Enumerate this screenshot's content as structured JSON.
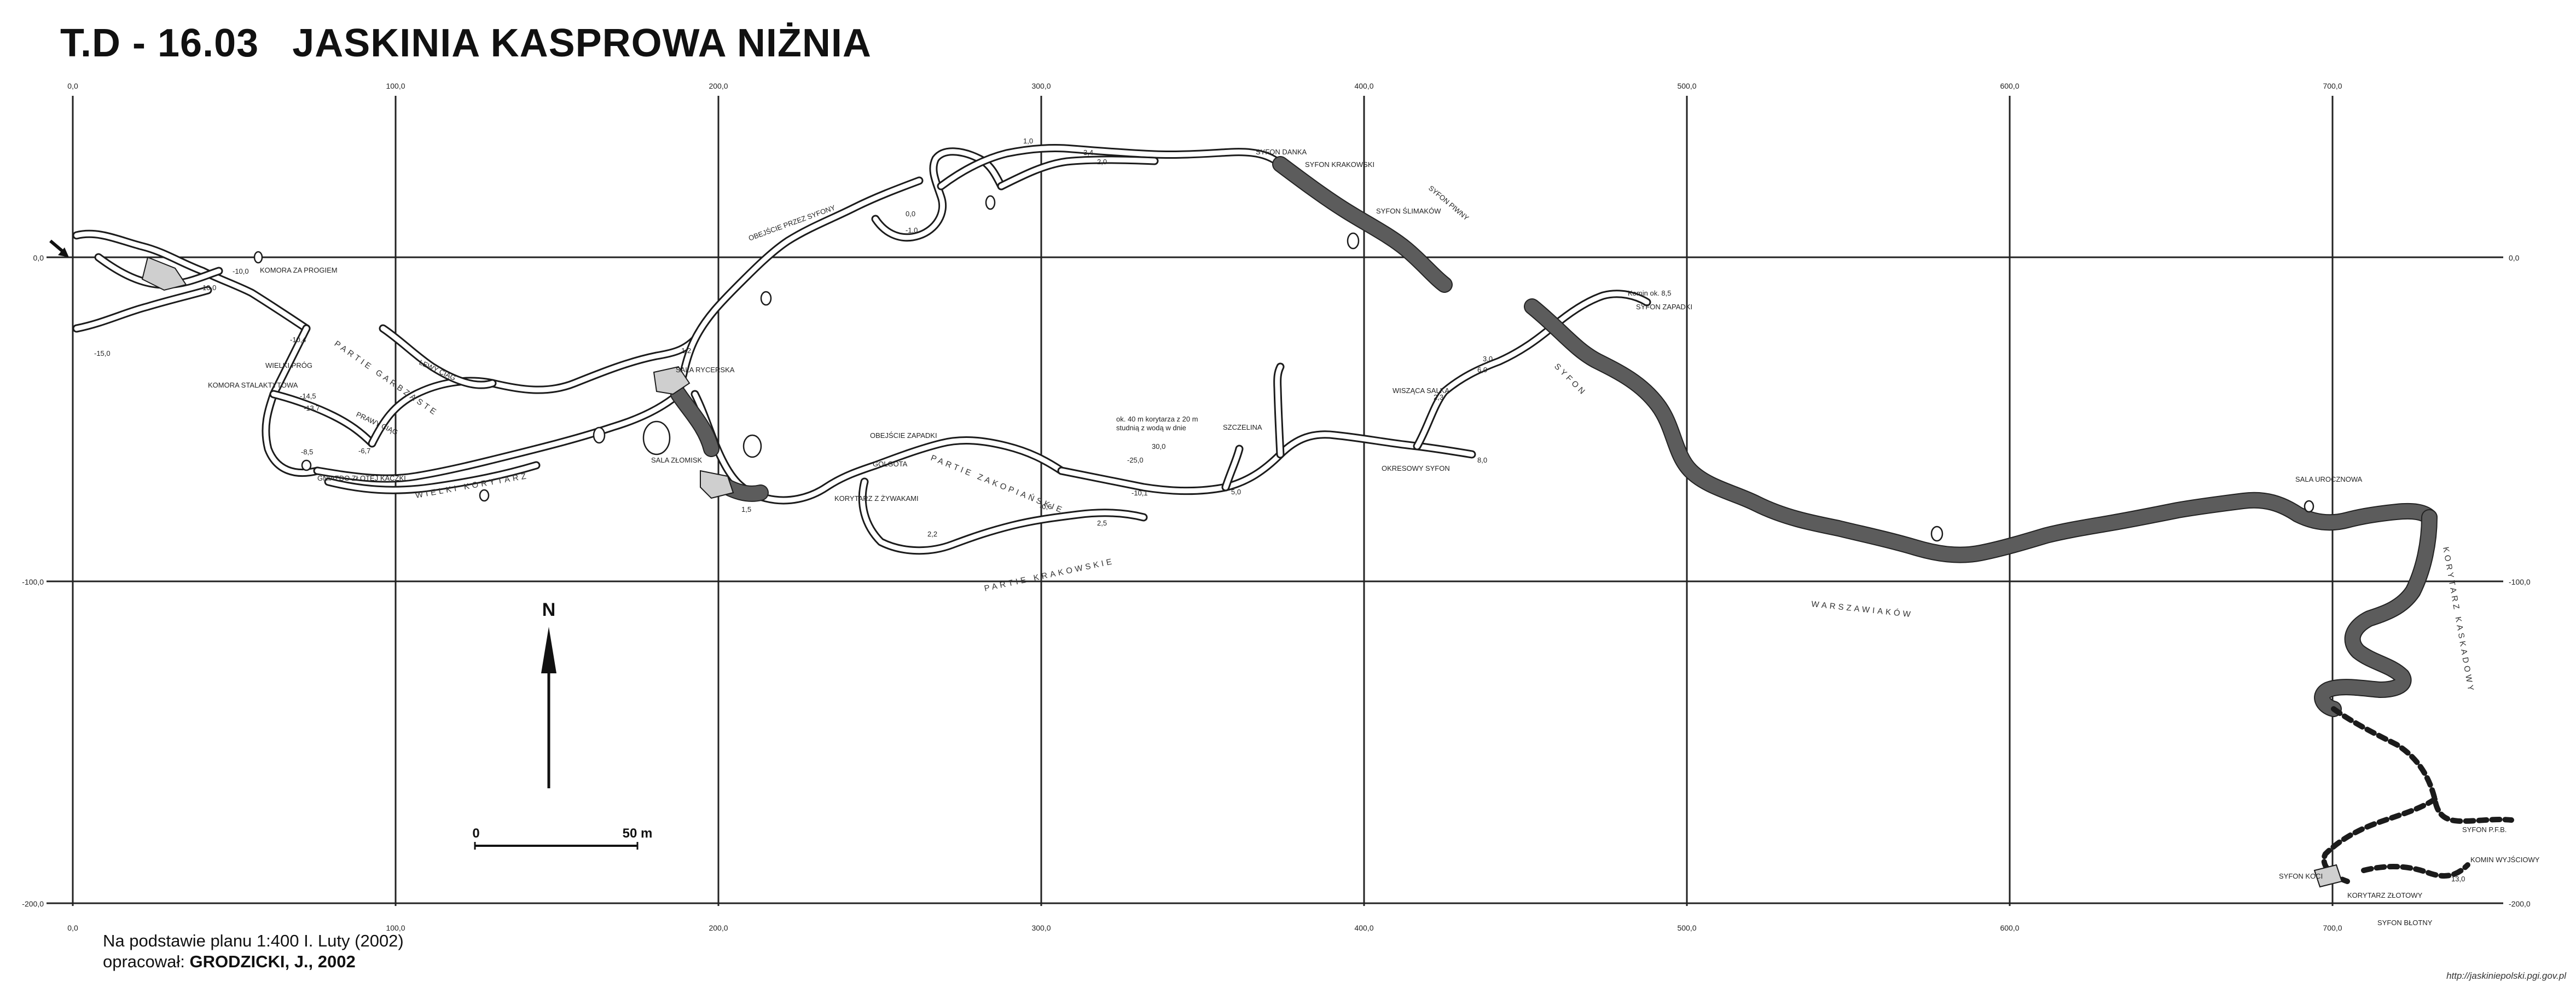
{
  "title": {
    "code": "T.D - 16.03",
    "name": "JASKINIA KASPROWA NIŻNIA"
  },
  "axes": {
    "x_ticks": [
      "0,0",
      "100,0",
      "200,0",
      "300,0",
      "400,0",
      "500,0",
      "600,0",
      "700,0"
    ],
    "y_ticks": [
      "0,0",
      "-100,0",
      "-200,0"
    ]
  },
  "north_arrow": {
    "label": "N"
  },
  "scale_bar": {
    "start": "0",
    "end": "50 m"
  },
  "labels": {
    "komora_za_progiem": "KOMORA ZA PROGIEM",
    "komora_stalaktytowa": "KOMORA STALAKTYTOWA",
    "wielki_prog": "WIELKI PRÓG",
    "gniazdo": "GNIAZDO ZŁOTEJ KACZKI",
    "lewy_ciag": "LEWY CIĄG",
    "prawy_ciag": "PRAWY CIĄG",
    "sala_rycerska": "SALA RYCERSKA",
    "sala_zlomisk": "SALA ZŁOMISK",
    "obejscie_syfony": "OBEJŚCIE PRZEZ SYFONY",
    "obejscie_zapadki": "OBEJŚCIE ZAPADKI",
    "golgota": "GOLGOTA",
    "korytarz_zywaczy": "KORYTARZ Z ŻYWAKAMI",
    "szczelina": "SZCZELINA",
    "wiszaca_salka": "WISZĄCA SALKA",
    "okresowy_syfon": "OKRESOWY SYFON",
    "syfon_danka": "SYFON DANKA",
    "syfon_krakowski": "SYFON KRAKOWSKI",
    "syfon_slimakow": "SYFON ŚLIMAKÓW",
    "syfon_piwny": "SYFON PIWNY",
    "komin": "Komin ok. 8,5",
    "syfon_zapadki": "SYFON ZAPADKI",
    "korytarz_note": "ok. 40 m korytarza z 20 m",
    "studnia_note": "studnią z wodą w dnie",
    "sala_urocza": "SALA UROCZNOWA",
    "syfon_pfb": "SYFON P.F.B.",
    "komin_wyjsciowy": "KOMIN WYJŚCIOWY",
    "syfon_koci": "SYFON KOCI",
    "korytarz_zlotowy": "KORYTARZ ZŁOTOWY",
    "syfon_blotny": "SYFON BŁOTNY"
  },
  "zones": {
    "partie_garbzaste": "PARTIE GARBZASTE",
    "wielki_korytarz": "WIELKI KORYTARZ",
    "partie_zakopianskie": "PARTIE ZAKOPIAŃSKIE",
    "partie_krakowskie": "PARTIE KRAKOWSKIE",
    "syfon": "SYFON",
    "warszawiakow": "WARSZAWIAKÓW",
    "korytarz_kaskadowy": "KORYTARZ KASKADOWY"
  },
  "depths": [
    "-15,0",
    "-10,4",
    "-14,5",
    "-13,7",
    "-8,5",
    "-6,7",
    "-10,0",
    "10,0",
    "1,2",
    "2,0",
    "3,4",
    "0,0",
    "-1,0",
    "1,0",
    "2,3",
    "3,0",
    "5,0",
    "8,0",
    "-25,0",
    "30,0",
    "-10,1",
    "1,5",
    "2,5",
    "2,2",
    "6,0",
    "-0,6",
    "13,0"
  ],
  "credits": {
    "line1": "Na podstawie planu 1:400 I. Luty (2002)",
    "line2_prefix": "opracował: ",
    "line2_author": "GRODZICKI, J., 2002"
  },
  "source": "http://jaskiniepolski.pgi.gov.pl"
}
